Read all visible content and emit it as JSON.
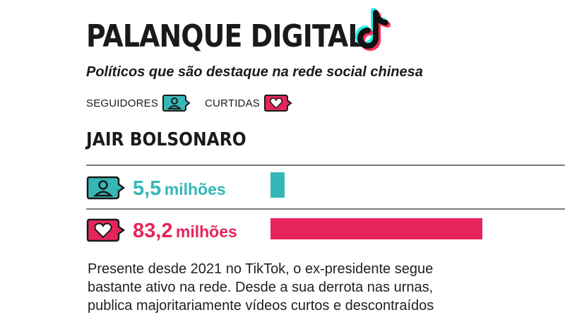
{
  "header": {
    "title": "PALANQUE DIGITAL",
    "subtitle": "Políticos que são destaque na rede social chinesa",
    "logo_icon": "tiktok-logo-icon"
  },
  "legend": {
    "followers_label": "SEGUIDORES",
    "likes_label": "CURTIDAS",
    "followers_icon": "person-chat-icon",
    "likes_icon": "heart-chat-icon"
  },
  "colors": {
    "followers": "#35b7b8",
    "likes": "#e6245b",
    "text": "#1a1a1a"
  },
  "chart_data": {
    "type": "bar",
    "title": "JAIR BOLSONARO",
    "categories": [
      "SEGUIDORES",
      "CURTIDAS"
    ],
    "values": [
      5.5,
      83.2
    ],
    "unit": "milhões",
    "series": [
      {
        "name": "SEGUIDORES",
        "value": 5.5,
        "value_text": "5,5",
        "unit": "milhões"
      },
      {
        "name": "CURTIDAS",
        "value": 83.2,
        "value_text": "83,2",
        "unit": "milhões"
      }
    ],
    "xlim": [
      0,
      83.2
    ],
    "grid": false,
    "legend_position": "top-left"
  },
  "description": "Presente desde 2021 no TikTok, o ex-presidente segue bastante ativo na rede. Desde a sua derrota nas urnas, publica majoritariamente vídeos curtos e descontraídos"
}
